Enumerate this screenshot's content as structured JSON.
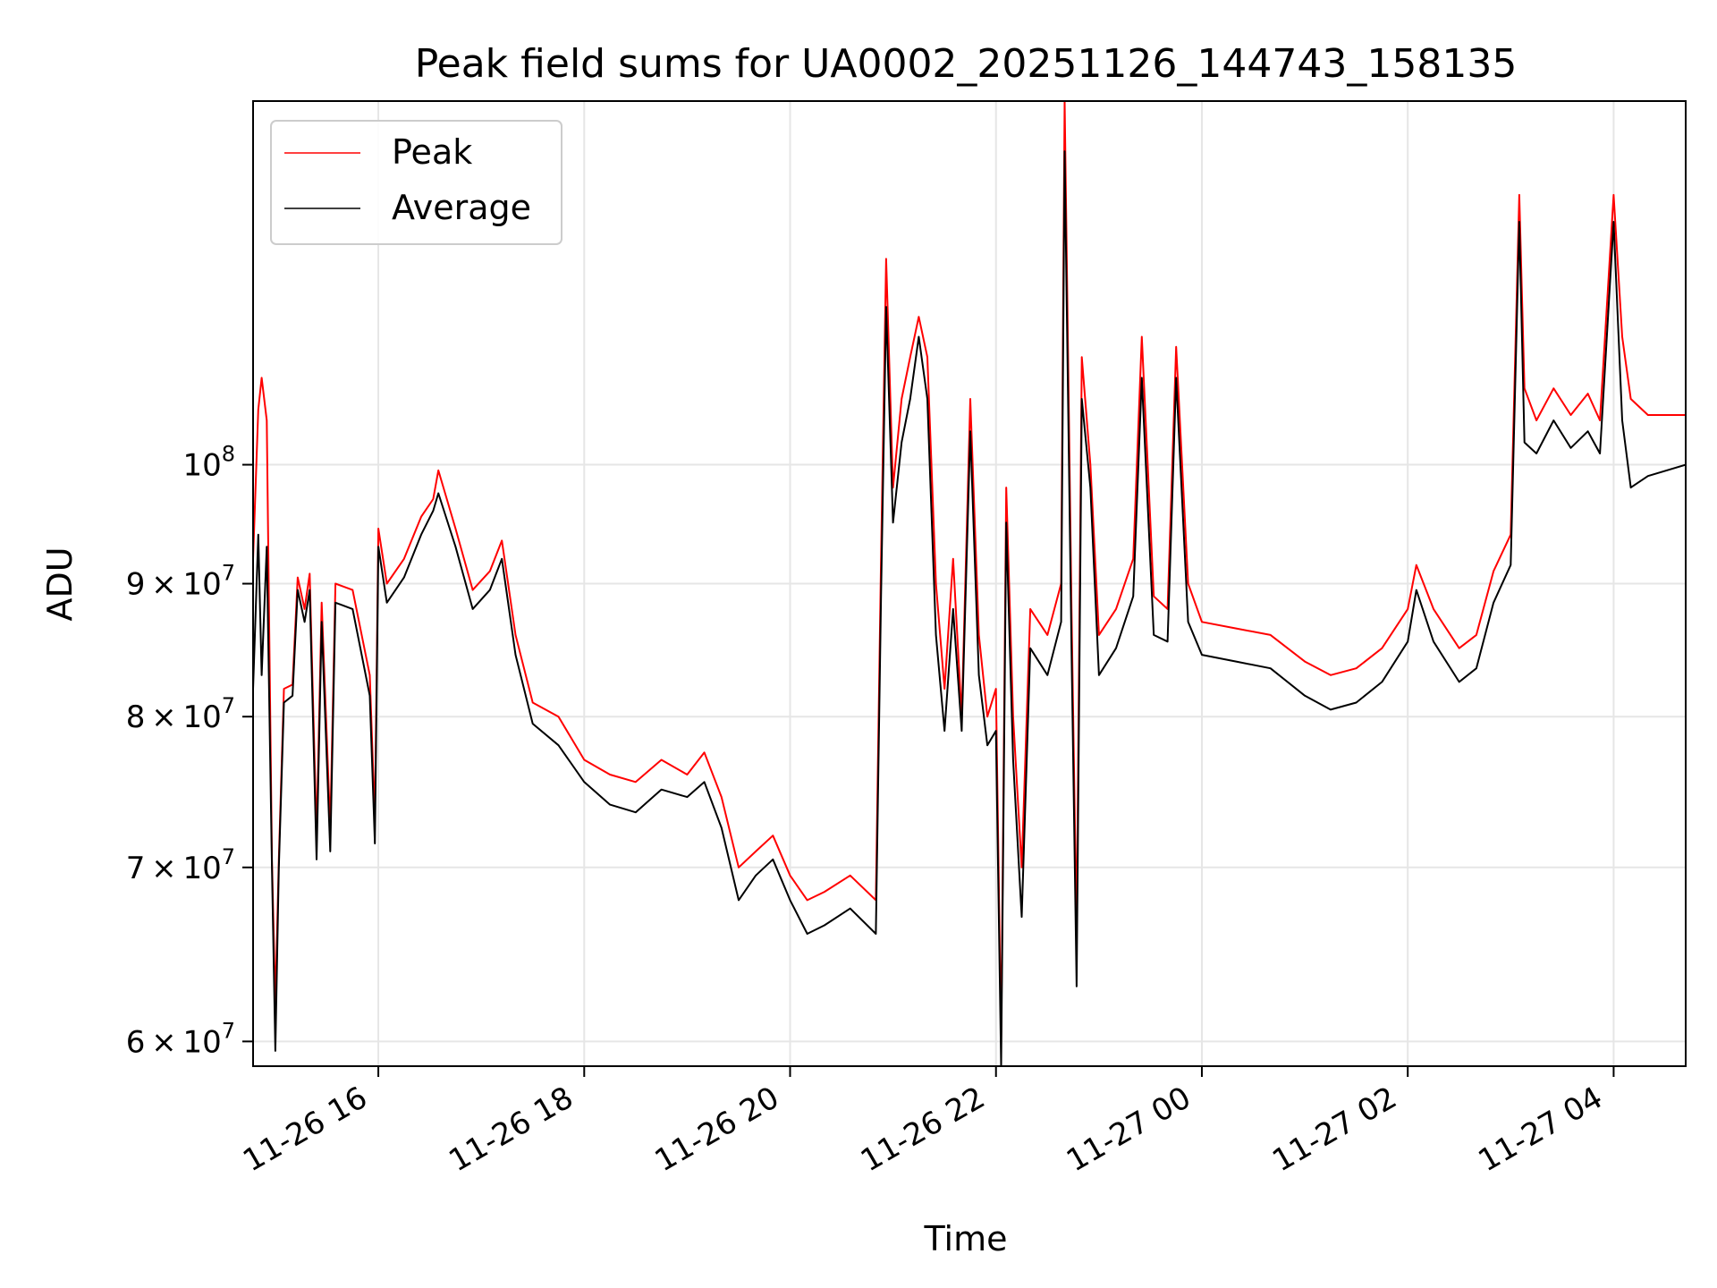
{
  "chart_data": {
    "type": "line",
    "title": "Peak field sums for UA0002_20251126_144743_158135",
    "xlabel": "Time",
    "ylabel": "ADU",
    "x_axis": {
      "kind": "datetime",
      "min": "2025-11-26 14:47",
      "max": "2025-11-27 04:42",
      "ticks": [
        {
          "value": "2025-11-26 16:00",
          "label": "11-26 16"
        },
        {
          "value": "2025-11-26 18:00",
          "label": "11-26 18"
        },
        {
          "value": "2025-11-26 20:00",
          "label": "11-26 20"
        },
        {
          "value": "2025-11-26 22:00",
          "label": "11-26 22"
        },
        {
          "value": "2025-11-27 00:00",
          "label": "11-27 00"
        },
        {
          "value": "2025-11-27 02:00",
          "label": "11-27 02"
        },
        {
          "value": "2025-11-27 04:00",
          "label": "11-27 04"
        }
      ]
    },
    "y_axis": {
      "scale": "log",
      "min": 58700000,
      "max": 138000000,
      "ticks": [
        {
          "value": 60000000,
          "mant": "6",
          "exp": "7"
        },
        {
          "value": 70000000,
          "mant": "7",
          "exp": "7"
        },
        {
          "value": 80000000,
          "mant": "8",
          "exp": "7"
        },
        {
          "value": 90000000,
          "mant": "9",
          "exp": "7"
        },
        {
          "value": 100000000,
          "mant": "",
          "exp": "8"
        }
      ],
      "times_symbol": "×",
      "base": "10"
    },
    "grid": true,
    "legend": {
      "position": "upper-left"
    },
    "series": [
      {
        "name": "Peak",
        "color": "#ff0000",
        "points": [
          [
            "2025-11-26 14:47",
            92000000
          ],
          [
            "2025-11-26 14:50",
            105000000
          ],
          [
            "2025-11-26 14:52",
            108000000
          ],
          [
            "2025-11-26 14:55",
            104000000
          ],
          [
            "2025-11-26 14:58",
            70500000
          ],
          [
            "2025-11-26 15:00",
            62000000
          ],
          [
            "2025-11-26 15:02",
            70500000
          ],
          [
            "2025-11-26 15:05",
            82000000
          ],
          [
            "2025-11-26 15:10",
            82300000
          ],
          [
            "2025-11-26 15:13",
            90500000
          ],
          [
            "2025-11-26 15:17",
            88000000
          ],
          [
            "2025-11-26 15:20",
            90800000
          ],
          [
            "2025-11-26 15:24",
            72000000
          ],
          [
            "2025-11-26 15:27",
            88500000
          ],
          [
            "2025-11-26 15:32",
            72500000
          ],
          [
            "2025-11-26 15:35",
            90000000
          ],
          [
            "2025-11-26 15:45",
            89500000
          ],
          [
            "2025-11-26 15:55",
            83000000
          ],
          [
            "2025-11-26 15:58",
            73000000
          ],
          [
            "2025-11-26 16:00",
            94500000
          ],
          [
            "2025-11-26 16:05",
            90000000
          ],
          [
            "2025-11-26 16:15",
            92000000
          ],
          [
            "2025-11-26 16:25",
            95500000
          ],
          [
            "2025-11-26 16:32",
            97000000
          ],
          [
            "2025-11-26 16:35",
            99500000
          ],
          [
            "2025-11-26 16:45",
            94500000
          ],
          [
            "2025-11-26 16:55",
            89500000
          ],
          [
            "2025-11-26 17:05",
            91000000
          ],
          [
            "2025-11-26 17:12",
            93500000
          ],
          [
            "2025-11-26 17:20",
            86000000
          ],
          [
            "2025-11-26 17:30",
            81000000
          ],
          [
            "2025-11-26 17:45",
            80000000
          ],
          [
            "2025-11-26 18:00",
            77000000
          ],
          [
            "2025-11-26 18:15",
            76000000
          ],
          [
            "2025-11-26 18:30",
            75500000
          ],
          [
            "2025-11-26 18:45",
            77000000
          ],
          [
            "2025-11-26 19:00",
            76000000
          ],
          [
            "2025-11-26 19:10",
            77500000
          ],
          [
            "2025-11-26 19:20",
            74500000
          ],
          [
            "2025-11-26 19:30",
            70000000
          ],
          [
            "2025-11-26 19:40",
            71000000
          ],
          [
            "2025-11-26 19:50",
            72000000
          ],
          [
            "2025-11-26 20:00",
            69500000
          ],
          [
            "2025-11-26 20:10",
            68000000
          ],
          [
            "2025-11-26 20:20",
            68500000
          ],
          [
            "2025-11-26 20:35",
            69500000
          ],
          [
            "2025-11-26 20:50",
            68000000
          ],
          [
            "2025-11-26 20:53",
            92000000
          ],
          [
            "2025-11-26 20:56",
            120000000
          ],
          [
            "2025-11-26 21:00",
            98000000
          ],
          [
            "2025-11-26 21:05",
            106000000
          ],
          [
            "2025-11-26 21:10",
            110000000
          ],
          [
            "2025-11-26 21:15",
            114000000
          ],
          [
            "2025-11-26 21:20",
            110000000
          ],
          [
            "2025-11-26 21:25",
            90000000
          ],
          [
            "2025-11-26 21:30",
            82000000
          ],
          [
            "2025-11-26 21:35",
            92000000
          ],
          [
            "2025-11-26 21:40",
            80000000
          ],
          [
            "2025-11-26 21:45",
            106000000
          ],
          [
            "2025-11-26 21:50",
            86000000
          ],
          [
            "2025-11-26 21:55",
            80000000
          ],
          [
            "2025-11-26 22:00",
            82000000
          ],
          [
            "2025-11-26 22:03",
            60000000
          ],
          [
            "2025-11-26 22:06",
            98000000
          ],
          [
            "2025-11-26 22:10",
            80000000
          ],
          [
            "2025-11-26 22:15",
            70000000
          ],
          [
            "2025-11-26 22:20",
            88000000
          ],
          [
            "2025-11-26 22:30",
            86000000
          ],
          [
            "2025-11-26 22:38",
            90000000
          ],
          [
            "2025-11-26 22:40",
            138000000
          ],
          [
            "2025-11-26 22:44",
            88000000
          ],
          [
            "2025-11-26 22:47",
            66000000
          ],
          [
            "2025-11-26 22:50",
            110000000
          ],
          [
            "2025-11-26 22:55",
            100000000
          ],
          [
            "2025-11-26 23:00",
            86000000
          ],
          [
            "2025-11-26 23:10",
            88000000
          ],
          [
            "2025-11-26 23:20",
            92000000
          ],
          [
            "2025-11-26 23:25",
            112000000
          ],
          [
            "2025-11-26 23:32",
            89000000
          ],
          [
            "2025-11-26 23:40",
            88000000
          ],
          [
            "2025-11-26 23:45",
            111000000
          ],
          [
            "2025-11-26 23:52",
            90000000
          ],
          [
            "2025-11-27 00:00",
            87000000
          ],
          [
            "2025-11-27 00:20",
            86500000
          ],
          [
            "2025-11-27 00:40",
            86000000
          ],
          [
            "2025-11-27 01:00",
            84000000
          ],
          [
            "2025-11-27 01:15",
            83000000
          ],
          [
            "2025-11-27 01:30",
            83500000
          ],
          [
            "2025-11-27 01:45",
            85000000
          ],
          [
            "2025-11-27 02:00",
            88000000
          ],
          [
            "2025-11-27 02:05",
            91500000
          ],
          [
            "2025-11-27 02:15",
            88000000
          ],
          [
            "2025-11-27 02:30",
            85000000
          ],
          [
            "2025-11-27 02:40",
            86000000
          ],
          [
            "2025-11-27 02:50",
            91000000
          ],
          [
            "2025-11-27 03:00",
            94000000
          ],
          [
            "2025-11-27 03:05",
            127000000
          ],
          [
            "2025-11-27 03:08",
            107000000
          ],
          [
            "2025-11-27 03:15",
            104000000
          ],
          [
            "2025-11-27 03:25",
            107000000
          ],
          [
            "2025-11-27 03:35",
            104500000
          ],
          [
            "2025-11-27 03:45",
            106500000
          ],
          [
            "2025-11-27 03:52",
            104000000
          ],
          [
            "2025-11-27 04:00",
            127000000
          ],
          [
            "2025-11-27 04:05",
            112000000
          ],
          [
            "2025-11-27 04:10",
            106000000
          ],
          [
            "2025-11-27 04:20",
            104500000
          ],
          [
            "2025-11-27 04:42",
            104500000
          ]
        ]
      },
      {
        "name": "Average",
        "color": "#000000",
        "points": [
          [
            "2025-11-26 14:47",
            82000000
          ],
          [
            "2025-11-26 14:50",
            94000000
          ],
          [
            "2025-11-26 14:52",
            83000000
          ],
          [
            "2025-11-26 14:55",
            93000000
          ],
          [
            "2025-11-26 14:58",
            70000000
          ],
          [
            "2025-11-26 15:00",
            59500000
          ],
          [
            "2025-11-26 15:02",
            70000000
          ],
          [
            "2025-11-26 15:05",
            81000000
          ],
          [
            "2025-11-26 15:10",
            81500000
          ],
          [
            "2025-11-26 15:13",
            89500000
          ],
          [
            "2025-11-26 15:17",
            87000000
          ],
          [
            "2025-11-26 15:20",
            89500000
          ],
          [
            "2025-11-26 15:24",
            70500000
          ],
          [
            "2025-11-26 15:27",
            87000000
          ],
          [
            "2025-11-26 15:32",
            71000000
          ],
          [
            "2025-11-26 15:35",
            88500000
          ],
          [
            "2025-11-26 15:45",
            88000000
          ],
          [
            "2025-11-26 15:55",
            81500000
          ],
          [
            "2025-11-26 15:58",
            71500000
          ],
          [
            "2025-11-26 16:00",
            93000000
          ],
          [
            "2025-11-26 16:05",
            88500000
          ],
          [
            "2025-11-26 16:15",
            90500000
          ],
          [
            "2025-11-26 16:25",
            94000000
          ],
          [
            "2025-11-26 16:32",
            96000000
          ],
          [
            "2025-11-26 16:35",
            97500000
          ],
          [
            "2025-11-26 16:45",
            93000000
          ],
          [
            "2025-11-26 16:55",
            88000000
          ],
          [
            "2025-11-26 17:05",
            89500000
          ],
          [
            "2025-11-26 17:12",
            92000000
          ],
          [
            "2025-11-26 17:20",
            84500000
          ],
          [
            "2025-11-26 17:30",
            79500000
          ],
          [
            "2025-11-26 17:45",
            78000000
          ],
          [
            "2025-11-26 18:00",
            75500000
          ],
          [
            "2025-11-26 18:15",
            74000000
          ],
          [
            "2025-11-26 18:30",
            73500000
          ],
          [
            "2025-11-26 18:45",
            75000000
          ],
          [
            "2025-11-26 19:00",
            74500000
          ],
          [
            "2025-11-26 19:10",
            75500000
          ],
          [
            "2025-11-26 19:20",
            72500000
          ],
          [
            "2025-11-26 19:30",
            68000000
          ],
          [
            "2025-11-26 19:40",
            69500000
          ],
          [
            "2025-11-26 19:50",
            70500000
          ],
          [
            "2025-11-26 20:00",
            68000000
          ],
          [
            "2025-11-26 20:10",
            66000000
          ],
          [
            "2025-11-26 20:20",
            66500000
          ],
          [
            "2025-11-26 20:35",
            67500000
          ],
          [
            "2025-11-26 20:50",
            66000000
          ],
          [
            "2025-11-26 20:53",
            89000000
          ],
          [
            "2025-11-26 20:56",
            115000000
          ],
          [
            "2025-11-26 21:00",
            95000000
          ],
          [
            "2025-11-26 21:05",
            102000000
          ],
          [
            "2025-11-26 21:10",
            106000000
          ],
          [
            "2025-11-26 21:15",
            112000000
          ],
          [
            "2025-11-26 21:20",
            106000000
          ],
          [
            "2025-11-26 21:25",
            86000000
          ],
          [
            "2025-11-26 21:30",
            79000000
          ],
          [
            "2025-11-26 21:35",
            88000000
          ],
          [
            "2025-11-26 21:40",
            79000000
          ],
          [
            "2025-11-26 21:45",
            103000000
          ],
          [
            "2025-11-26 21:50",
            83000000
          ],
          [
            "2025-11-26 21:55",
            78000000
          ],
          [
            "2025-11-26 22:00",
            79000000
          ],
          [
            "2025-11-26 22:03",
            58700000
          ],
          [
            "2025-11-26 22:06",
            95000000
          ],
          [
            "2025-11-26 22:10",
            77000000
          ],
          [
            "2025-11-26 22:15",
            67000000
          ],
          [
            "2025-11-26 22:20",
            85000000
          ],
          [
            "2025-11-26 22:30",
            83000000
          ],
          [
            "2025-11-26 22:38",
            87000000
          ],
          [
            "2025-11-26 22:40",
            132000000
          ],
          [
            "2025-11-26 22:44",
            85000000
          ],
          [
            "2025-11-26 22:47",
            63000000
          ],
          [
            "2025-11-26 22:50",
            106000000
          ],
          [
            "2025-11-26 22:55",
            98000000
          ],
          [
            "2025-11-26 23:00",
            83000000
          ],
          [
            "2025-11-26 23:10",
            85000000
          ],
          [
            "2025-11-26 23:20",
            89000000
          ],
          [
            "2025-11-26 23:25",
            108000000
          ],
          [
            "2025-11-26 23:32",
            86000000
          ],
          [
            "2025-11-26 23:40",
            85500000
          ],
          [
            "2025-11-26 23:45",
            108000000
          ],
          [
            "2025-11-26 23:52",
            87000000
          ],
          [
            "2025-11-27 00:00",
            84500000
          ],
          [
            "2025-11-27 00:20",
            84000000
          ],
          [
            "2025-11-27 00:40",
            83500000
          ],
          [
            "2025-11-27 01:00",
            81500000
          ],
          [
            "2025-11-27 01:15",
            80500000
          ],
          [
            "2025-11-27 01:30",
            81000000
          ],
          [
            "2025-11-27 01:45",
            82500000
          ],
          [
            "2025-11-27 02:00",
            85500000
          ],
          [
            "2025-11-27 02:05",
            89500000
          ],
          [
            "2025-11-27 02:15",
            85500000
          ],
          [
            "2025-11-27 02:30",
            82500000
          ],
          [
            "2025-11-27 02:40",
            83500000
          ],
          [
            "2025-11-27 02:50",
            88500000
          ],
          [
            "2025-11-27 03:00",
            91500000
          ],
          [
            "2025-11-27 03:05",
            124000000
          ],
          [
            "2025-11-27 03:08",
            102000000
          ],
          [
            "2025-11-27 03:15",
            101000000
          ],
          [
            "2025-11-27 03:25",
            104000000
          ],
          [
            "2025-11-27 03:35",
            101500000
          ],
          [
            "2025-11-27 03:45",
            103000000
          ],
          [
            "2025-11-27 03:52",
            101000000
          ],
          [
            "2025-11-27 04:00",
            124000000
          ],
          [
            "2025-11-27 04:05",
            104000000
          ],
          [
            "2025-11-27 04:10",
            98000000
          ],
          [
            "2025-11-27 04:20",
            99000000
          ],
          [
            "2025-11-27 04:42",
            100000000
          ]
        ]
      }
    ]
  }
}
